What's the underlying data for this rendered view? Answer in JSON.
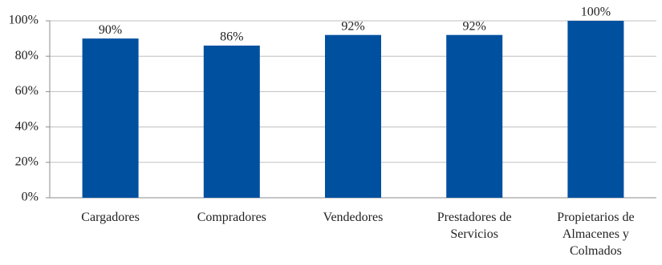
{
  "chart_data": {
    "type": "bar",
    "categories": [
      "Cargadores",
      "Compradores",
      "Vendedores",
      "Prestadores de Servicios",
      "Propietarios de Almacenes y Colmados"
    ],
    "values": [
      90,
      86,
      92,
      92,
      100
    ],
    "value_labels": [
      "90%",
      "86%",
      "92%",
      "92%",
      "100%"
    ],
    "color": "#0050a0",
    "ylim": [
      0,
      100
    ],
    "yticks": [
      {
        "value": 0,
        "label": "0%"
      },
      {
        "value": 20,
        "label": "20%"
      },
      {
        "value": 40,
        "label": "40%"
      },
      {
        "value": 60,
        "label": "60%"
      },
      {
        "value": 80,
        "label": "80%"
      },
      {
        "value": 100,
        "label": "100%"
      }
    ],
    "grid": true
  }
}
